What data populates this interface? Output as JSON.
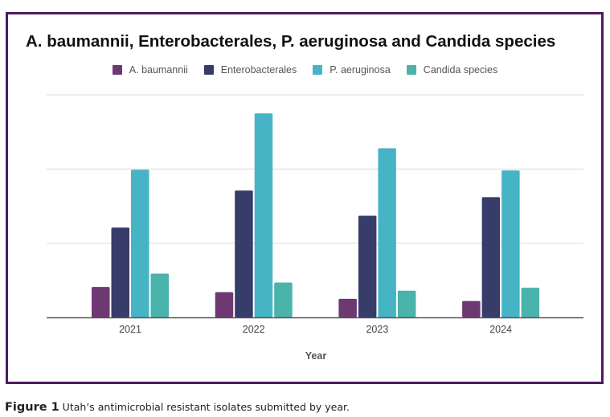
{
  "colors": {
    "frame": "#4e1a5e",
    "grid": "#d9d9d9",
    "axis": "#555555",
    "series": [
      "#6e3873",
      "#373c6b",
      "#46b4c4",
      "#4ab3ab"
    ]
  },
  "caption": {
    "label": "Figure 1",
    "text": " Utah’s antimicrobial resistant isolates submitted by year."
  },
  "chart_data": {
    "type": "bar",
    "title": "A. baumannii, Enterobacterales, P. aeruginosa and Candida species",
    "xlabel": "Year",
    "ylabel": "",
    "y_units_note": "No y-axis tick labels shown; values expressed in gridline intervals",
    "ylim": [
      0,
      3
    ],
    "grid": true,
    "gridlines": [
      1,
      2,
      3
    ],
    "legend_position": "top-center",
    "categories": [
      "2021",
      "2022",
      "2023",
      "2024"
    ],
    "series": [
      {
        "name": "A. baumannii",
        "values": [
          0.41,
          0.34,
          0.25,
          0.22
        ]
      },
      {
        "name": "Enterobacterales",
        "values": [
          1.21,
          1.71,
          1.37,
          1.62
        ]
      },
      {
        "name": "P. aeruginosa",
        "values": [
          1.99,
          2.75,
          2.28,
          1.98
        ]
      },
      {
        "name": "Candida species",
        "values": [
          0.59,
          0.47,
          0.36,
          0.4
        ]
      }
    ]
  }
}
